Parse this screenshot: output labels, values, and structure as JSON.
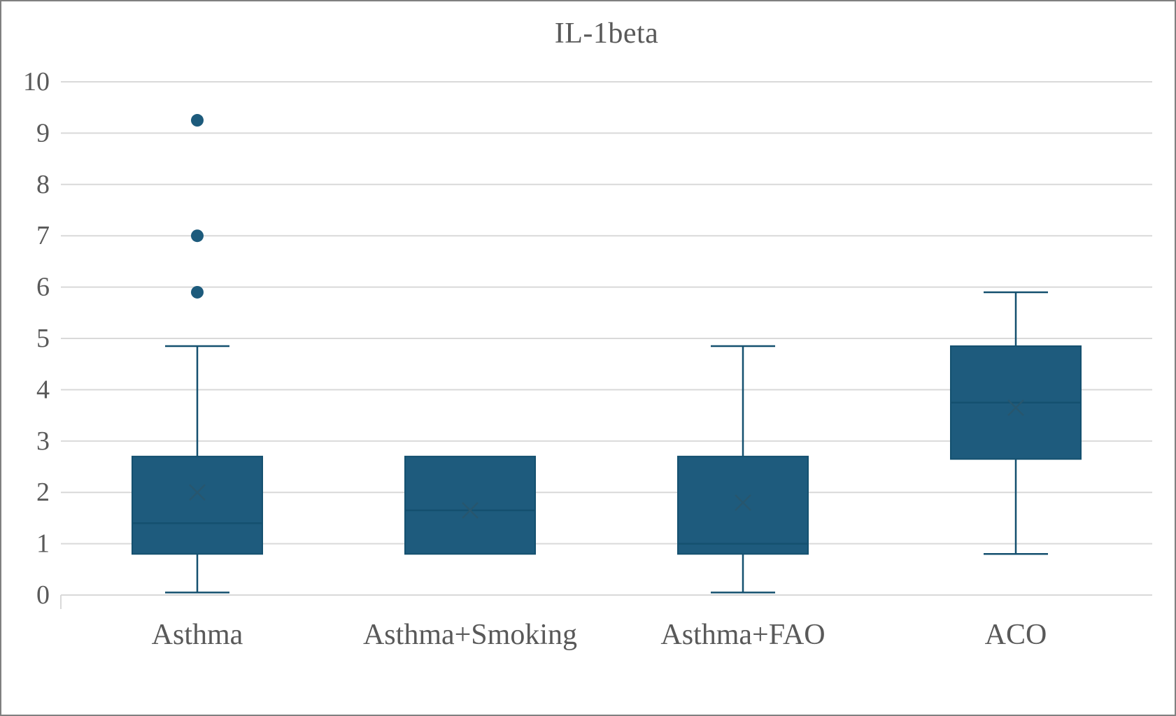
{
  "frame": {
    "background": "#ffffff",
    "border_color": "#808080"
  },
  "chart_data": {
    "type": "boxplot",
    "title": "IL-1beta",
    "categories": [
      "Asthma",
      "Asthma+Smoking",
      "Asthma+FAO",
      "ACO"
    ],
    "series": [
      {
        "name": "Asthma",
        "whisker_low": 0.05,
        "q1": 0.8,
        "median": 1.4,
        "q3": 2.7,
        "whisker_high": 4.85,
        "mean": 2.0,
        "outliers": [
          5.9,
          7.0,
          9.25
        ]
      },
      {
        "name": "Asthma+Smoking",
        "whisker_low": 0.8,
        "q1": 0.8,
        "median": 1.65,
        "q3": 2.7,
        "whisker_high": 2.7,
        "mean": 1.65,
        "outliers": []
      },
      {
        "name": "Asthma+FAO",
        "whisker_low": 0.05,
        "q1": 0.8,
        "median": 1.0,
        "q3": 2.7,
        "whisker_high": 4.85,
        "mean": 1.8,
        "outliers": []
      },
      {
        "name": "ACO",
        "whisker_low": 0.8,
        "q1": 2.65,
        "median": 3.75,
        "q3": 4.85,
        "whisker_high": 5.9,
        "mean": 3.65,
        "outliers": []
      }
    ],
    "ylim": [
      0,
      10
    ],
    "ytick_step": 1,
    "yticks": [
      0,
      1,
      2,
      3,
      4,
      5,
      6,
      7,
      8,
      9,
      10
    ],
    "xlabel": "",
    "ylabel": "",
    "grid": true,
    "legend": "none",
    "colors": {
      "box_fill": "#1e5b7d",
      "box_stroke": "#14506f",
      "median": "#14506f",
      "mean_marker": "#27566e",
      "outlier": "#1d5b7c",
      "gridline": "#d9d9d9",
      "axis_text": "#595959",
      "title_text": "#595959"
    }
  }
}
